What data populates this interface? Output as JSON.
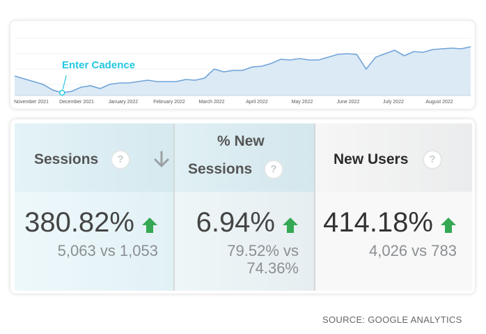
{
  "chart": {
    "annotation": "Enter Cadence",
    "x_labels": [
      "November 2021",
      "December 2021",
      "January 2022",
      "February 2022",
      "March 2022",
      "April 2022",
      "May 2022",
      "June 2022",
      "July 2022",
      "August 2022"
    ],
    "line_color": "#6fa3d8",
    "fill_color": "#dceaf6",
    "marker_color": "#22c8e0",
    "trend_levels": [
      0.28,
      0.24,
      0.2,
      0.16,
      0.08,
      0.04,
      0.06,
      0.12,
      0.14,
      0.1,
      0.16,
      0.18,
      0.18,
      0.2,
      0.22,
      0.2,
      0.2,
      0.2,
      0.23,
      0.22,
      0.25,
      0.38,
      0.34,
      0.36,
      0.36,
      0.41,
      0.42,
      0.46,
      0.52,
      0.51,
      0.53,
      0.51,
      0.51,
      0.55,
      0.59,
      0.6,
      0.59,
      0.38,
      0.55,
      0.6,
      0.65,
      0.57,
      0.63,
      0.62,
      0.66,
      0.67,
      0.68,
      0.67,
      0.7
    ],
    "marker_index": 5
  },
  "metrics": [
    {
      "label_lines": [
        "Sessions"
      ],
      "help": "?",
      "sort_icon": "sort-down-arrow-icon",
      "value": "380.82%",
      "trend_icon": "up-arrow-icon",
      "compare_lines": [
        "5,063 vs 1,053"
      ]
    },
    {
      "label_lines": [
        "% New",
        "Sessions"
      ],
      "help": "?",
      "value": "6.94%",
      "trend_icon": "up-arrow-icon",
      "compare_lines": [
        "79.52% vs",
        "74.36%"
      ]
    },
    {
      "label_lines": [
        "New Users"
      ],
      "help": "?",
      "value": "414.18%",
      "trend_icon": "up-arrow-icon",
      "compare_lines": [
        "4,026 vs 783"
      ]
    }
  ],
  "trend_up_color": "#34a853",
  "source": "SOURCE: GOOGLE ANALYTICS"
}
